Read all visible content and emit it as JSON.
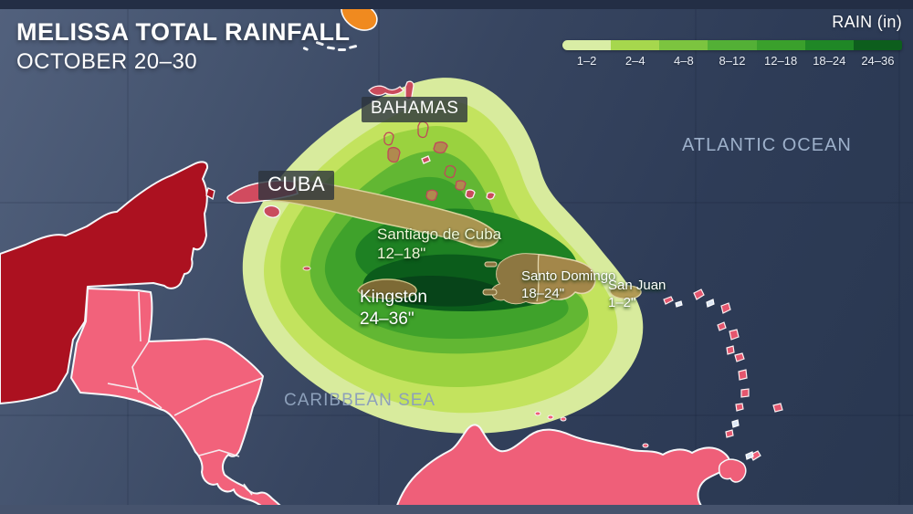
{
  "title": {
    "line1": "MELISSA TOTAL RAINFALL",
    "line2": "OCTOBER 20–30"
  },
  "legend": {
    "title": "RAIN (in)",
    "items": [
      {
        "label": "1–2",
        "color": "#d9eda5"
      },
      {
        "label": "2–4",
        "color": "#a6d74d"
      },
      {
        "label": "4–8",
        "color": "#7cc43f"
      },
      {
        "label": "8–12",
        "color": "#53b036"
      },
      {
        "label": "12–18",
        "color": "#3aa02c"
      },
      {
        "label": "18–24",
        "color": "#1f8726"
      },
      {
        "label": "24–36",
        "color": "#0d5e1d"
      }
    ]
  },
  "ocean_labels": {
    "atlantic": "ATLANTIC OCEAN",
    "caribbean": "CARIBBEAN SEA"
  },
  "place_labels": {
    "bahamas": "BAHAMAS",
    "cuba": "CUBA"
  },
  "city_annotations": [
    {
      "name": "Santiago de Cuba",
      "value": "12–18\""
    },
    {
      "name": "Kingston",
      "value": "24–36\""
    },
    {
      "name": "Santo Domingo",
      "value": "18–24\""
    },
    {
      "name": "San Juan",
      "value": "1–2\""
    }
  ],
  "map_colors": {
    "ocean_light": "#52617d",
    "ocean_dark": "#293750",
    "land_highlight": "#ac1120",
    "land_pink": "#f2627b",
    "florida_orange": "#f08a1f"
  }
}
